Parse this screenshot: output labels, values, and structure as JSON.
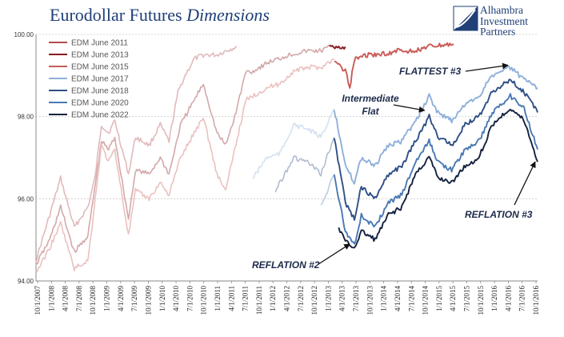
{
  "header": {
    "title_main": "Eurodollar Futures ",
    "title_italic": "Dimensions"
  },
  "logo": {
    "text": "Alhambra\nInvestment\nPartners",
    "colors": {
      "primary": "#1f3f77"
    }
  },
  "chart_data": {
    "type": "line",
    "title": "Eurodollar Futures Dimensions",
    "ylim": [
      94,
      100
    ],
    "yticks": [
      "94.00",
      "96.00",
      "98.00",
      "100.00"
    ],
    "grid": "horizontal dotted",
    "legend_position": "top-left",
    "x_tick_labels": [
      "10/1/2007",
      "1/1/2008",
      "4/1/2008",
      "7/1/2008",
      "10/1/2008",
      "1/1/2009",
      "4/1/2009",
      "7/1/2009",
      "10/1/2009",
      "1/1/2010",
      "4/1/2010",
      "7/1/2010",
      "10/1/2010",
      "1/1/2011",
      "4/1/2011",
      "7/1/2011",
      "10/1/2011",
      "1/1/2012",
      "4/1/2012",
      "7/1/2012",
      "10/1/2012",
      "1/1/2013",
      "4/1/2013",
      "7/1/2013",
      "10/1/2013",
      "1/1/2014",
      "4/1/2014",
      "7/1/2014",
      "10/1/2014",
      "1/1/2015",
      "4/1/2015",
      "7/1/2015",
      "10/1/2015",
      "1/1/2016",
      "4/1/2016",
      "7/1/2016",
      "10/1/2016"
    ],
    "series": [
      {
        "name": "EDM June 2011",
        "color": "#b34a4f",
        "faded_before": "2013-05-01",
        "points": [
          [
            "2007-10-01",
            94.5
          ],
          [
            "2008-01-01",
            95.6
          ],
          [
            "2008-03-15",
            96.5
          ],
          [
            "2008-06-15",
            95.3
          ],
          [
            "2008-09-15",
            95.8
          ],
          [
            "2008-11-01",
            96.5
          ],
          [
            "2008-12-15",
            97.8
          ],
          [
            "2009-02-01",
            97.6
          ],
          [
            "2009-03-15",
            97.9
          ],
          [
            "2009-06-15",
            96.6
          ],
          [
            "2009-08-01",
            97.5
          ],
          [
            "2009-11-01",
            97.3
          ],
          [
            "2010-01-15",
            97.8
          ],
          [
            "2010-03-15",
            97.4
          ],
          [
            "2010-05-15",
            98.6
          ],
          [
            "2010-07-01",
            99.0
          ],
          [
            "2010-09-01",
            99.4
          ],
          [
            "2010-11-01",
            99.5
          ],
          [
            "2011-02-01",
            99.5
          ],
          [
            "2011-04-01",
            99.6
          ],
          [
            "2011-06-15",
            99.7
          ]
        ]
      },
      {
        "name": "EDM June 2013",
        "color": "#8b1a1f",
        "faded_before": "2013-05-01",
        "points": [
          [
            "2007-10-01",
            94.4
          ],
          [
            "2008-01-01",
            95.0
          ],
          [
            "2008-03-15",
            95.8
          ],
          [
            "2008-06-15",
            94.7
          ],
          [
            "2008-09-15",
            95.1
          ],
          [
            "2008-12-15",
            97.4
          ],
          [
            "2009-02-01",
            97.2
          ],
          [
            "2009-03-15",
            97.5
          ],
          [
            "2009-06-15",
            95.5
          ],
          [
            "2009-08-01",
            96.7
          ],
          [
            "2009-11-01",
            96.6
          ],
          [
            "2010-01-15",
            97.0
          ],
          [
            "2010-03-15",
            96.6
          ],
          [
            "2010-06-01",
            97.8
          ],
          [
            "2010-09-01",
            98.4
          ],
          [
            "2010-11-01",
            98.8
          ],
          [
            "2011-02-01",
            97.6
          ],
          [
            "2011-04-01",
            97.3
          ],
          [
            "2011-06-01",
            98.0
          ],
          [
            "2011-08-15",
            99.1
          ],
          [
            "2011-10-01",
            99.1
          ],
          [
            "2012-01-01",
            99.3
          ],
          [
            "2012-06-01",
            99.5
          ],
          [
            "2012-10-01",
            99.6
          ],
          [
            "2013-01-01",
            99.6
          ],
          [
            "2013-03-01",
            99.7
          ],
          [
            "2013-06-15",
            99.7
          ]
        ]
      },
      {
        "name": "EDM June 2015",
        "color": "#c95b57",
        "faded_before": "2013-05-01",
        "points": [
          [
            "2007-10-01",
            94.2
          ],
          [
            "2008-01-01",
            94.8
          ],
          [
            "2008-03-15",
            95.4
          ],
          [
            "2008-06-15",
            94.3
          ],
          [
            "2008-09-15",
            94.5
          ],
          [
            "2008-12-15",
            97.3
          ],
          [
            "2009-02-01",
            96.9
          ],
          [
            "2009-03-15",
            97.2
          ],
          [
            "2009-06-15",
            95.1
          ],
          [
            "2009-08-01",
            96.2
          ],
          [
            "2009-11-01",
            96.0
          ],
          [
            "2010-01-15",
            96.4
          ],
          [
            "2010-03-15",
            96.1
          ],
          [
            "2010-06-01",
            97.0
          ],
          [
            "2010-09-01",
            97.6
          ],
          [
            "2010-11-01",
            98.0
          ],
          [
            "2011-02-01",
            96.6
          ],
          [
            "2011-04-01",
            96.2
          ],
          [
            "2011-06-01",
            97.2
          ],
          [
            "2011-08-15",
            98.4
          ],
          [
            "2011-10-01",
            98.5
          ],
          [
            "2012-01-01",
            98.7
          ],
          [
            "2012-04-01",
            98.8
          ],
          [
            "2012-07-01",
            99.1
          ],
          [
            "2012-10-01",
            99.2
          ],
          [
            "2013-01-01",
            99.2
          ],
          [
            "2013-04-01",
            99.4
          ],
          [
            "2013-06-15",
            99.1
          ],
          [
            "2013-07-15",
            98.7
          ],
          [
            "2013-08-15",
            99.4
          ],
          [
            "2013-11-01",
            99.5
          ],
          [
            "2014-02-01",
            99.5
          ],
          [
            "2014-06-01",
            99.6
          ],
          [
            "2014-10-01",
            99.6
          ],
          [
            "2015-01-01",
            99.7
          ],
          [
            "2015-06-15",
            99.75
          ]
        ]
      },
      {
        "name": "EDM June 2017",
        "color": "#8fb0da",
        "faded_before": "2013-05-01",
        "points": [
          [
            "2011-10-01",
            96.5
          ],
          [
            "2012-01-01",
            97.0
          ],
          [
            "2012-04-01",
            97.1
          ],
          [
            "2012-07-01",
            97.8
          ],
          [
            "2012-10-01",
            97.7
          ],
          [
            "2013-01-01",
            97.5
          ],
          [
            "2013-04-01",
            98.2
          ],
          [
            "2013-06-15",
            96.8
          ],
          [
            "2013-08-15",
            96.4
          ],
          [
            "2013-10-01",
            97.0
          ],
          [
            "2014-01-01",
            96.8
          ],
          [
            "2014-04-01",
            97.3
          ],
          [
            "2014-07-01",
            97.4
          ],
          [
            "2014-10-01",
            97.9
          ],
          [
            "2015-01-01",
            98.5
          ],
          [
            "2015-03-01",
            98.1
          ],
          [
            "2015-06-01",
            97.9
          ],
          [
            "2015-09-01",
            98.3
          ],
          [
            "2015-12-01",
            98.5
          ],
          [
            "2016-03-01",
            99.0
          ],
          [
            "2016-07-01",
            99.2
          ],
          [
            "2016-10-01",
            98.9
          ],
          [
            "2016-12-31",
            98.7
          ]
        ]
      },
      {
        "name": "EDM June 2018",
        "color": "#2f4f86",
        "faded_before": "2013-05-01",
        "points": [
          [
            "2012-03-01",
            96.2
          ],
          [
            "2012-07-01",
            97.0
          ],
          [
            "2012-10-01",
            96.9
          ],
          [
            "2013-01-01",
            96.6
          ],
          [
            "2013-04-01",
            97.5
          ],
          [
            "2013-06-15",
            95.9
          ],
          [
            "2013-08-15",
            95.5
          ],
          [
            "2013-10-01",
            96.3
          ],
          [
            "2014-01-01",
            96.0
          ],
          [
            "2014-04-01",
            96.6
          ],
          [
            "2014-07-01",
            96.8
          ],
          [
            "2014-10-01",
            97.4
          ],
          [
            "2015-01-01",
            98.0
          ],
          [
            "2015-03-01",
            97.5
          ],
          [
            "2015-06-01",
            97.3
          ],
          [
            "2015-09-01",
            97.8
          ],
          [
            "2015-12-01",
            98.0
          ],
          [
            "2016-03-01",
            98.6
          ],
          [
            "2016-07-01",
            98.9
          ],
          [
            "2016-10-01",
            98.6
          ],
          [
            "2016-12-31",
            98.1
          ]
        ]
      },
      {
        "name": "EDM June 2020",
        "color": "#4a79b4",
        "faded_before": "2013-05-01",
        "points": [
          [
            "2013-01-01",
            95.8
          ],
          [
            "2013-04-01",
            96.6
          ],
          [
            "2013-06-15",
            95.2
          ],
          [
            "2013-08-15",
            94.9
          ],
          [
            "2013-10-01",
            95.6
          ],
          [
            "2014-01-01",
            95.3
          ],
          [
            "2014-04-01",
            95.9
          ],
          [
            "2014-07-01",
            96.1
          ],
          [
            "2014-10-01",
            96.9
          ],
          [
            "2015-01-01",
            97.4
          ],
          [
            "2015-03-01",
            96.9
          ],
          [
            "2015-06-01",
            96.7
          ],
          [
            "2015-09-01",
            97.2
          ],
          [
            "2015-12-01",
            97.4
          ],
          [
            "2016-03-01",
            98.1
          ],
          [
            "2016-07-01",
            98.5
          ],
          [
            "2016-10-01",
            98.2
          ],
          [
            "2016-12-31",
            97.2
          ]
        ]
      },
      {
        "name": "EDM June 2022",
        "color": "#14213f",
        "faded_before": "2013-05-01",
        "points": [
          [
            "2013-05-01",
            95.3
          ],
          [
            "2013-06-15",
            94.95
          ],
          [
            "2013-08-15",
            94.8
          ],
          [
            "2013-10-01",
            95.2
          ],
          [
            "2014-01-01",
            95.0
          ],
          [
            "2014-04-01",
            95.6
          ],
          [
            "2014-07-01",
            95.8
          ],
          [
            "2014-10-01",
            96.6
          ],
          [
            "2015-01-01",
            97.0
          ],
          [
            "2015-03-01",
            96.5
          ],
          [
            "2015-06-01",
            96.4
          ],
          [
            "2015-09-01",
            96.8
          ],
          [
            "2015-12-01",
            97.0
          ],
          [
            "2016-03-01",
            97.8
          ],
          [
            "2016-07-01",
            98.2
          ],
          [
            "2016-10-01",
            97.9
          ],
          [
            "2016-12-31",
            96.9
          ]
        ]
      }
    ],
    "annotations": [
      {
        "text": "FLATTEST #3",
        "arrow_to": [
          "2016-06-15",
          99.25
        ]
      },
      {
        "text": "Intermediate\nFlat",
        "arrow_to": [
          "2014-12-01",
          98.15
        ]
      },
      {
        "text": "REFLATION #2",
        "arrow_to": [
          "2013-07-15",
          94.9
        ]
      },
      {
        "text": "REFLATION #3",
        "arrow_to": [
          "2016-12-15",
          96.9
        ]
      }
    ]
  }
}
